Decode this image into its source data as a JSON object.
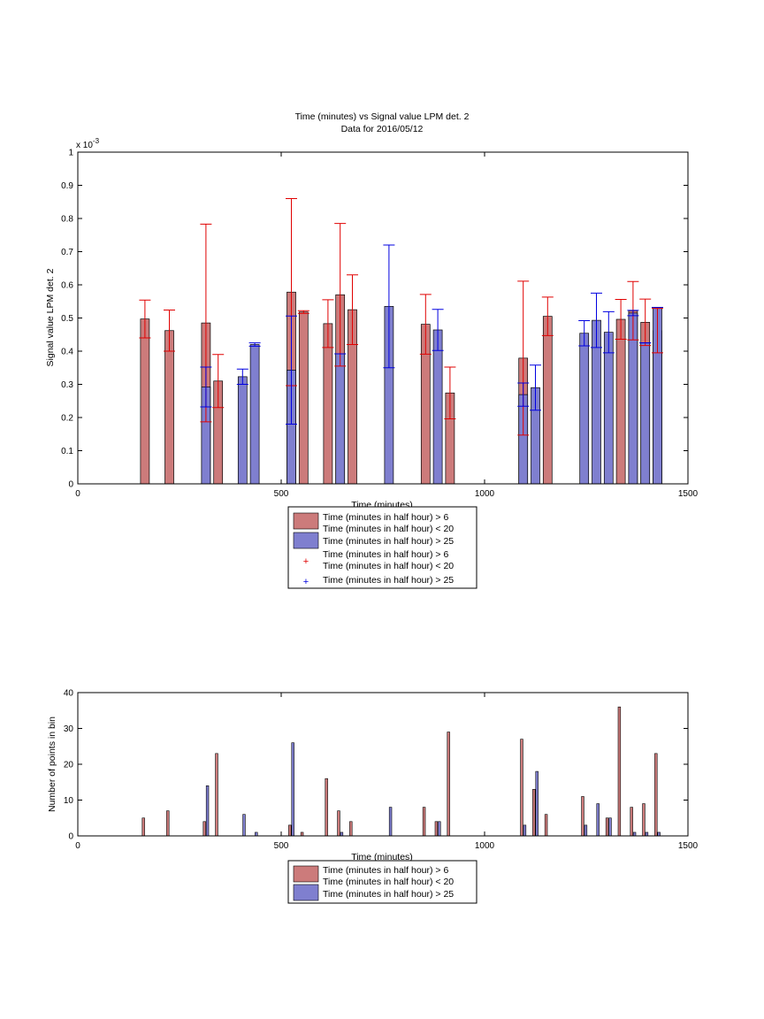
{
  "colors": {
    "red_bar": "#cc7b7b",
    "blue_bar": "#7f7fcf",
    "red_error": "#e00000",
    "blue_error": "#0000e0"
  },
  "top_chart": {
    "title_line1": "Time (minutes) vs Signal value LPM det. 2",
    "title_line2": "Data for 2016/05/12",
    "xlabel": "Time (minutes)",
    "ylabel": "Signal value LPM det. 2",
    "exponent_label": "x 10",
    "exponent_value": "-3"
  },
  "top_legend": {
    "bar1_line1": "Time (minutes in half hour) > 6",
    "bar1_line2": "Time (minutes in half hour) < 20",
    "bar2": "Time (minutes in half hour) > 25",
    "marker1_line1": "Time (minutes in half hour) > 6",
    "marker1_line2": "Time (minutes in half hour) < 20",
    "marker2": "Time (minutes in half hour) > 25"
  },
  "bottom_chart": {
    "xlabel": "Time (minutes)",
    "ylabel": "Number of points in bin"
  },
  "bottom_legend": {
    "bar1_line1": "Time (minutes in half hour) > 6",
    "bar1_line2": "Time (minutes in half hour) < 20",
    "bar2": "Time (minutes in half hour) > 25"
  },
  "chart_data": [
    {
      "type": "bar",
      "title": "Time (minutes) vs Signal value LPM det. 2 / Data for 2016/05/12",
      "xlabel": "Time (minutes)",
      "ylabel": "Signal value LPM det. 2",
      "y_scale_note": "x 10^-3",
      "xlim": [
        0,
        1500
      ],
      "ylim": [
        0,
        0.001
      ],
      "xticks": [
        "0",
        "500",
        "1000",
        "1500"
      ],
      "yticks": [
        "0",
        "0.1",
        "0.2",
        "0.3",
        "0.4",
        "0.5",
        "0.6",
        "0.7",
        "0.8",
        "0.9",
        "1"
      ],
      "grid": false,
      "legend": "bottom-outside",
      "series": [
        {
          "name": "Time (minutes in half hour) > 6 Time (minutes in half hour) < 20",
          "color": "#cc7b7b",
          "error_color": "#e00000",
          "x": [
            165,
            225,
            315,
            345,
            525,
            555,
            615,
            645,
            675,
            855,
            915,
            1095,
            1155,
            1335,
            1365,
            1395,
            1425
          ],
          "values": [
            0.000497,
            0.000462,
            0.000485,
            0.00031,
            0.000578,
            0.000518,
            0.000483,
            0.00057,
            0.000525,
            0.000481,
            0.000274,
            0.000379,
            0.000505,
            0.000496,
            0.000522,
            0.000487,
            0.000462
          ],
          "error": [
            5.7e-05,
            6.2e-05,
            0.000298,
            8e-05,
            0.000282,
            4e-06,
            7.2e-05,
            0.000215,
            0.000105,
            9e-05,
            7.8e-05,
            0.000232,
            5.8e-05,
            6e-05,
            8.8e-05,
            7e-05,
            6.7e-05
          ]
        },
        {
          "name": "Time (minutes in half hour) > 25",
          "color": "#7f7fcf",
          "error_color": "#0000e0",
          "x": [
            315,
            405,
            435,
            525,
            645,
            765,
            885,
            1095,
            1125,
            1245,
            1275,
            1305,
            1365,
            1395,
            1425
          ],
          "values": [
            0.000292,
            0.000323,
            0.00042,
            0.000343,
            0.000392,
            0.000535,
            0.000464,
            0.000269,
            0.00029,
            0.000454,
            0.000493,
            0.000457,
            0.000515,
            0.000425,
            0.000532
          ],
          "error": [
            6e-05,
            2.3e-05,
            5e-06,
            0.000163,
            0.0,
            0.000185,
            6.2e-05,
            3.5e-05,
            6.8e-05,
            3.8e-05,
            8.2e-05,
            6.2e-05,
            8e-06,
            0.0,
            0.0
          ]
        }
      ]
    },
    {
      "type": "bar",
      "title": "",
      "xlabel": "Time (minutes)",
      "ylabel": "Number of points in bin",
      "xlim": [
        0,
        1500
      ],
      "ylim": [
        0,
        40
      ],
      "xticks": [
        "0",
        "500",
        "1000",
        "1500"
      ],
      "yticks": [
        "0",
        "10",
        "20",
        "30",
        "40"
      ],
      "grid": false,
      "legend": "bottom-outside",
      "series": [
        {
          "name": "Time (minutes in half hour) > 6 Time (minutes in half hour) < 20",
          "color": "#cc7b7b",
          "x": [
            165,
            225,
            315,
            345,
            525,
            555,
            615,
            645,
            675,
            855,
            885,
            915,
            1095,
            1125,
            1155,
            1245,
            1305,
            1335,
            1365,
            1395,
            1425
          ],
          "values": [
            5,
            7,
            4,
            23,
            3,
            1,
            16,
            7,
            4,
            8,
            4,
            29,
            27,
            13,
            6,
            11,
            5,
            36,
            8,
            9,
            23
          ]
        },
        {
          "name": "Time (minutes in half hour) > 25",
          "color": "#7f7fcf",
          "x": [
            315,
            405,
            435,
            525,
            645,
            765,
            885,
            1095,
            1125,
            1245,
            1275,
            1305,
            1365,
            1395,
            1425
          ],
          "values": [
            14,
            6,
            1,
            26,
            1,
            8,
            4,
            3,
            18,
            3,
            9,
            5,
            1,
            1,
            1
          ]
        }
      ]
    }
  ]
}
